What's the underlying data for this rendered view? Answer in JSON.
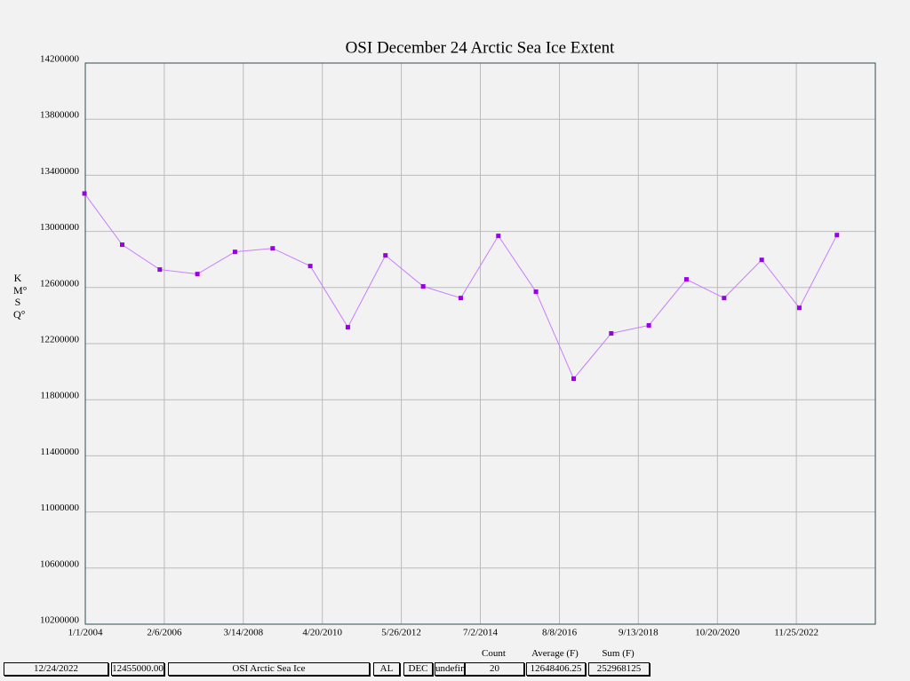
{
  "chart_data": {
    "type": "line",
    "title": "OSI December 24 Arctic Sea Ice Extent",
    "y_label": "KM°SQ°",
    "x": [
      "12/24/2003",
      "12/24/2004",
      "12/24/2005",
      "12/24/2006",
      "12/24/2007",
      "12/24/2008",
      "12/24/2009",
      "12/24/2010",
      "12/24/2011",
      "12/24/2012",
      "12/24/2013",
      "12/24/2014",
      "12/24/2015",
      "12/24/2016",
      "12/24/2017",
      "12/24/2018",
      "12/24/2019",
      "12/24/2020",
      "12/24/2021",
      "12/24/2022",
      "12/24/2023"
    ],
    "series": [
      {
        "color": "#9900e6",
        "line_color": "#c77dff",
        "values": [
          13270000,
          12905000,
          12728000,
          12696000,
          12854000,
          12879000,
          12753000,
          12317000,
          12829000,
          12608000,
          12525000,
          12968000,
          12570000,
          11950000,
          12273000,
          12330000,
          12658000,
          12525000,
          12797000,
          12455000,
          12974000
        ]
      }
    ],
    "xlim": [
      "1/1/2004",
      "12/31/2024"
    ],
    "xticks": [
      "1/1/2004",
      "2/6/2006",
      "3/14/2008",
      "4/20/2010",
      "5/26/2012",
      "7/2/2014",
      "8/8/2016",
      "9/13/2018",
      "10/20/2020",
      "11/25/2022"
    ],
    "ylim": [
      10200000,
      14200000
    ],
    "yticks": [
      10200000,
      10600000,
      11000000,
      11400000,
      11800000,
      12200000,
      12600000,
      13000000,
      13400000,
      13800000,
      14200000
    ],
    "grid": true
  },
  "form": {
    "fields": [
      "12/24/2022",
      "12455000.00",
      "OSI Arctic Sea Ice",
      "AL",
      "DEC",
      "undefined"
    ],
    "summary_headers": [
      "Count",
      "Average (F)",
      "Sum (F)"
    ],
    "summary_values": [
      "20",
      "12648406.25",
      "252968125"
    ]
  }
}
